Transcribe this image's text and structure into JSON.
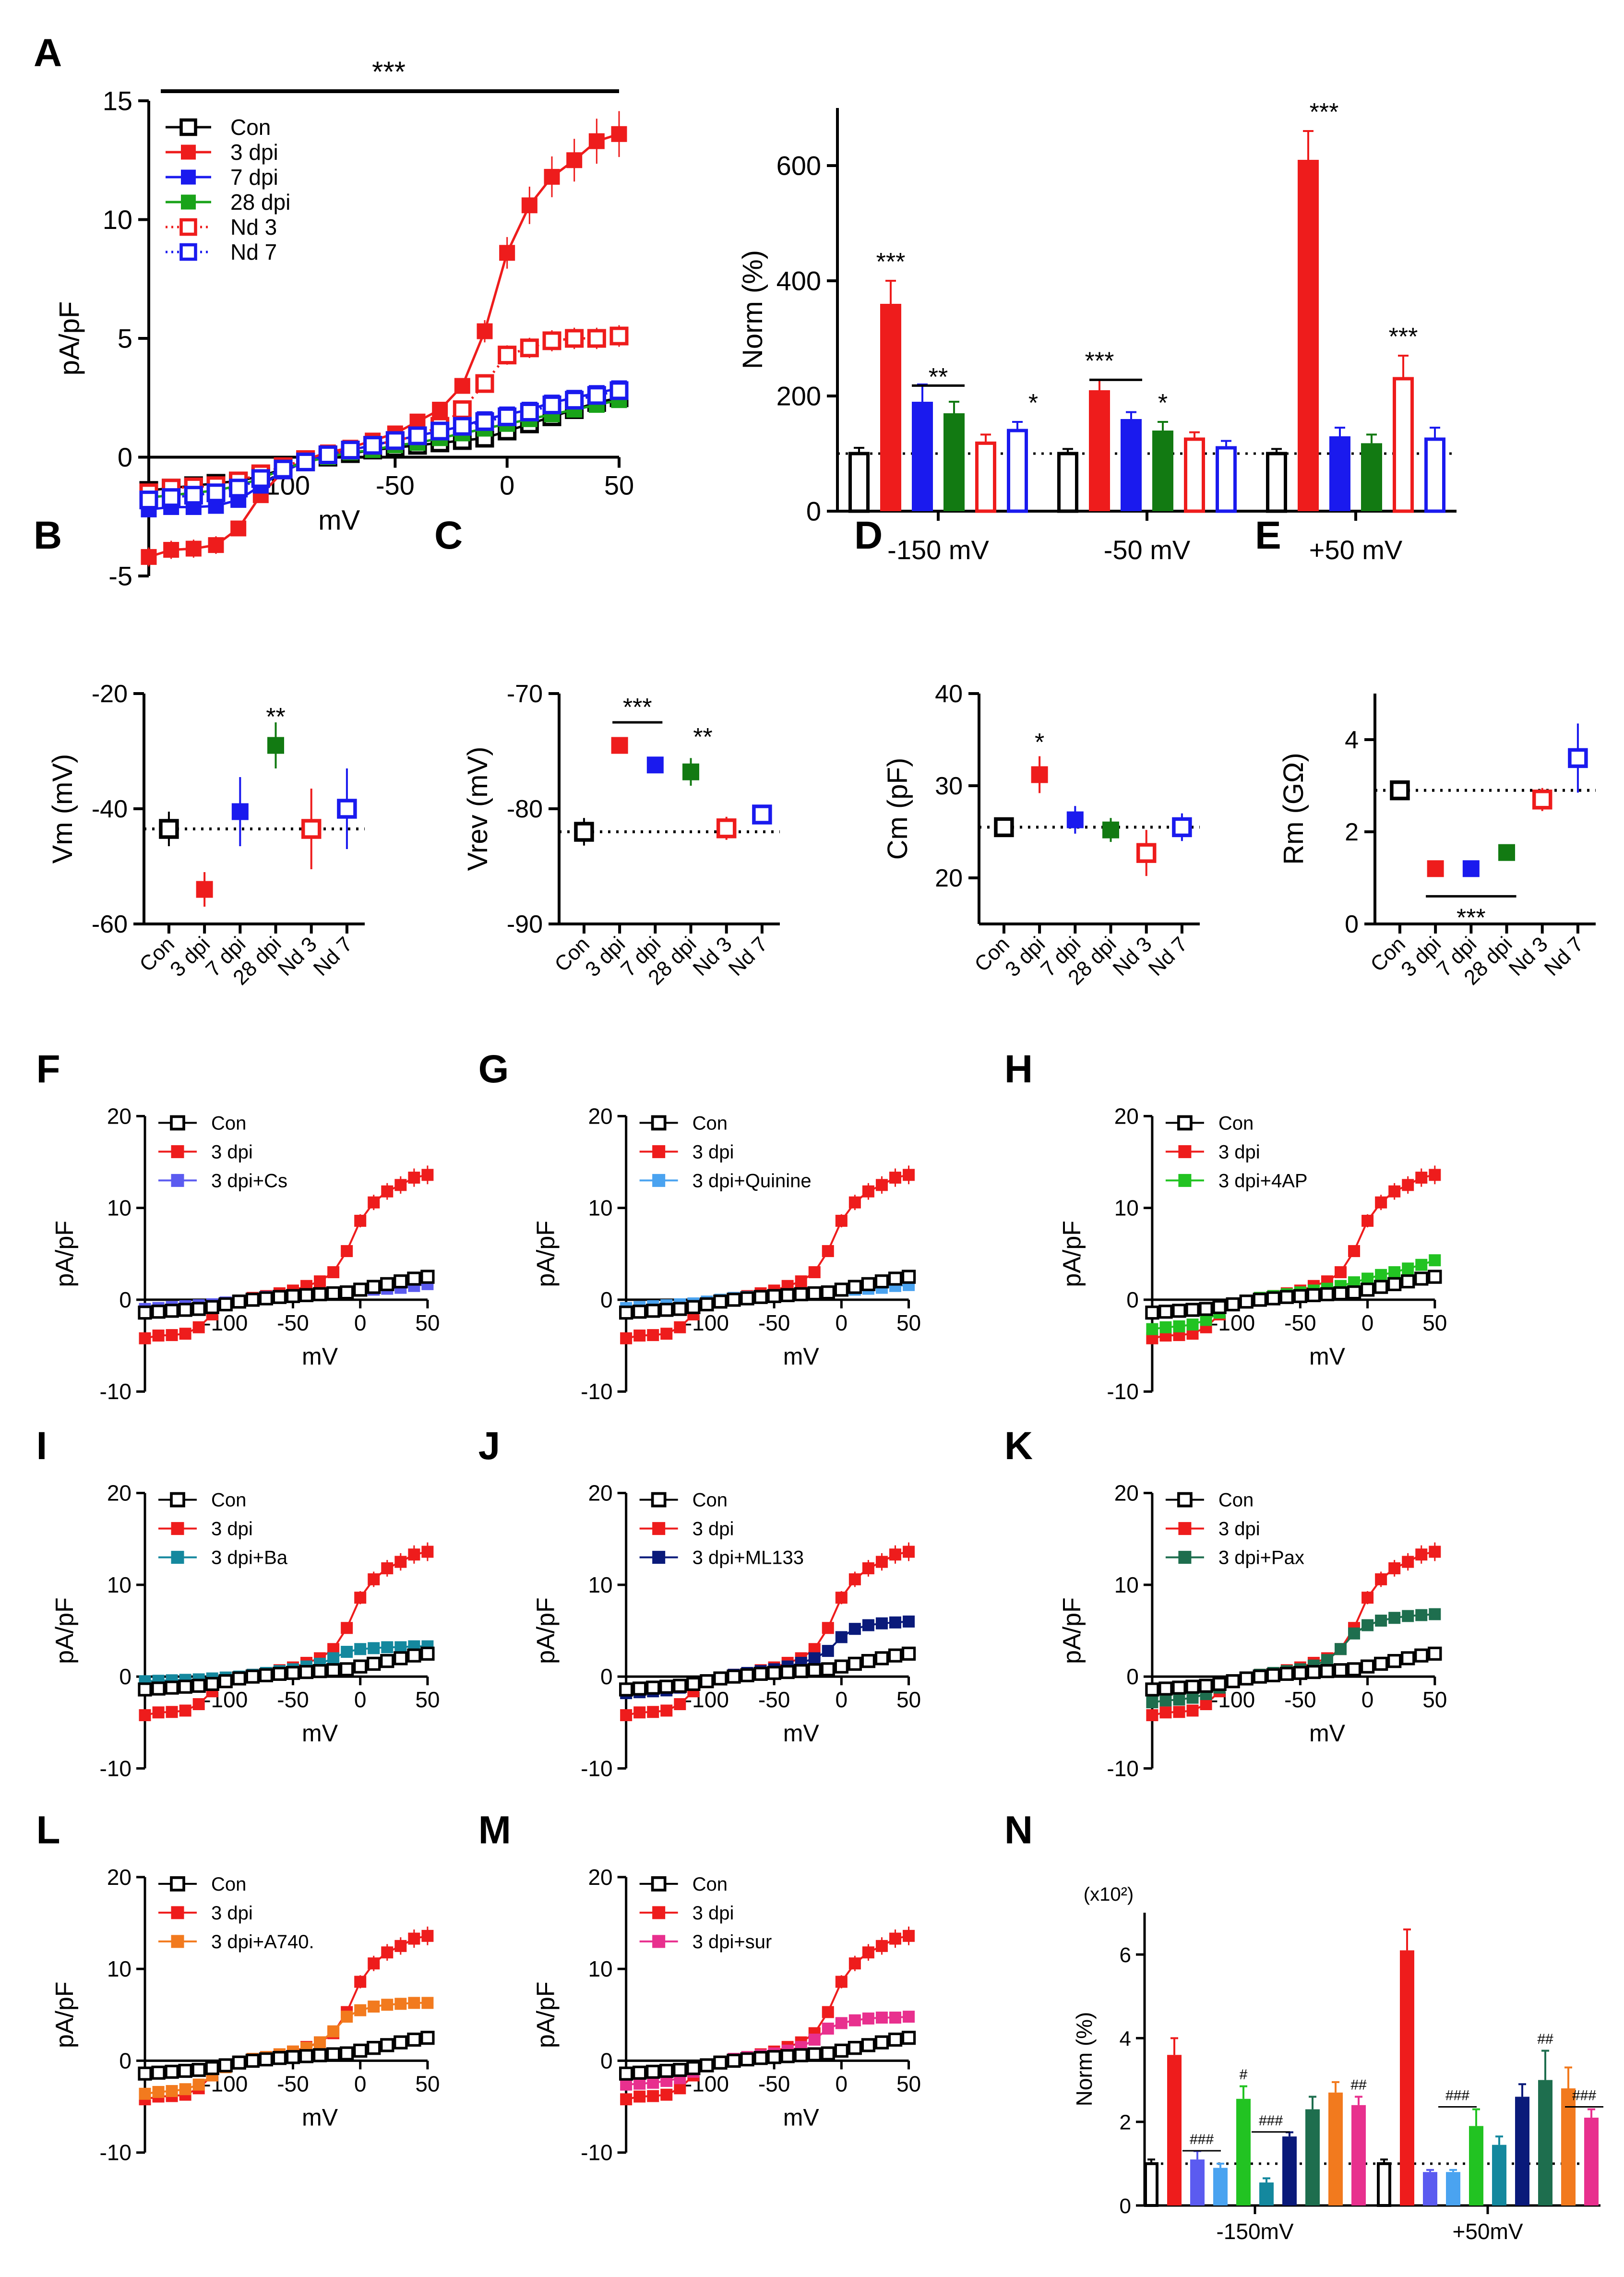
{
  "panel_letters": [
    "A",
    "B",
    "C",
    "D",
    "E",
    "F",
    "G",
    "H",
    "I",
    "J",
    "K",
    "L",
    "M",
    "N"
  ],
  "colors": {
    "con": "#000000",
    "dpi3": "#ee1c1c",
    "dpi7": "#1a1aee",
    "dpi28": "#19a319",
    "nd3": "#ee1c1c",
    "nd7": "#1a1aee",
    "dpi28_dark": "#127a12",
    "cs": "#5b5bf0",
    "quinine": "#4aa3f0",
    "ap4": "#22c322",
    "ba": "#14889e",
    "ml133": "#0a1a7a",
    "pax": "#1e6e4e",
    "a740": "#f27a1e",
    "sur": "#e8308e"
  },
  "chart_data": [
    {
      "id": "A_iv",
      "type": "line",
      "panel": "A",
      "xlabel": "mV",
      "ylabel": "pA/pF",
      "xlim": [
        -160,
        50
      ],
      "ylim": [
        -5,
        15
      ],
      "xticks": [
        -100,
        -50,
        0,
        50
      ],
      "xtick_labels": [
        "-100",
        "-50",
        "0",
        "50"
      ],
      "yticks": [
        -5,
        0,
        5,
        10,
        15
      ],
      "ytick_labels": [
        "-5",
        "0",
        "5",
        "10",
        "15"
      ],
      "annotation": "***",
      "x": [
        -160,
        -150,
        -140,
        -130,
        -120,
        -110,
        -100,
        -90,
        -80,
        -70,
        -60,
        -50,
        -40,
        -30,
        -20,
        -10,
        0,
        10,
        20,
        30,
        40,
        50
      ],
      "series": [
        {
          "name": "Con",
          "key": "con",
          "marker": "open",
          "line": "solid",
          "values": [
            -1.4,
            -1.3,
            -1.2,
            -1.1,
            -1.0,
            -0.8,
            -0.5,
            -0.2,
            0.0,
            0.15,
            0.3,
            0.4,
            0.5,
            0.6,
            0.7,
            0.8,
            1.1,
            1.4,
            1.7,
            2.0,
            2.3,
            2.5
          ]
        },
        {
          "name": "3 dpi",
          "key": "dpi3",
          "marker": "filled",
          "line": "solid",
          "values": [
            -4.2,
            -3.9,
            -3.85,
            -3.7,
            -3.0,
            -1.6,
            -0.6,
            -0.1,
            0.2,
            0.4,
            0.7,
            1.0,
            1.5,
            2.0,
            3.0,
            5.3,
            8.6,
            10.6,
            11.8,
            12.5,
            13.3,
            13.6
          ]
        },
        {
          "name": "7 dpi",
          "key": "dpi7",
          "marker": "filled",
          "line": "solid",
          "values": [
            -2.2,
            -2.1,
            -2.1,
            -2.05,
            -1.8,
            -1.2,
            -0.6,
            -0.2,
            0.1,
            0.3,
            0.5,
            0.7,
            0.9,
            1.1,
            1.3,
            1.6,
            1.8,
            2.0,
            2.3,
            2.5,
            2.7,
            2.9
          ]
        },
        {
          "name": "28 dpi",
          "key": "dpi28",
          "marker": "filled",
          "line": "solid",
          "values": [
            -1.7,
            -1.6,
            -1.5,
            -1.4,
            -1.2,
            -0.9,
            -0.5,
            -0.2,
            0.0,
            0.2,
            0.3,
            0.5,
            0.6,
            0.8,
            1.0,
            1.2,
            1.4,
            1.6,
            1.8,
            2.0,
            2.2,
            2.4
          ]
        },
        {
          "name": "Nd 3",
          "key": "nd3",
          "marker": "open",
          "line": "dotted",
          "values": [
            -1.5,
            -1.3,
            -1.25,
            -1.2,
            -1.0,
            -0.7,
            -0.4,
            -0.1,
            0.1,
            0.3,
            0.5,
            0.7,
            0.9,
            1.3,
            2.0,
            3.1,
            4.3,
            4.6,
            4.9,
            5.0,
            5.0,
            5.1
          ]
        },
        {
          "name": "Nd 7",
          "key": "nd7",
          "marker": "open",
          "line": "dotted",
          "values": [
            -1.8,
            -1.7,
            -1.6,
            -1.5,
            -1.3,
            -0.9,
            -0.5,
            -0.2,
            0.1,
            0.3,
            0.5,
            0.7,
            0.9,
            1.1,
            1.3,
            1.5,
            1.7,
            1.9,
            2.2,
            2.4,
            2.6,
            2.8
          ]
        }
      ]
    },
    {
      "id": "A_bar",
      "type": "bar",
      "panel": "A",
      "ylabel": "Norm  (%)",
      "ylim": [
        0,
        700
      ],
      "yticks": [
        0,
        200,
        400,
        600
      ],
      "ytick_labels": [
        "0",
        "200",
        "400",
        "600"
      ],
      "categories": [
        "-150 mV",
        "-50 mV",
        "+50 mV"
      ],
      "reference_line": 100,
      "series": [
        {
          "name": "Con",
          "key": "con",
          "style": "open",
          "values": [
            100,
            100,
            100
          ],
          "errors": [
            10,
            8,
            8
          ]
        },
        {
          "name": "3 dpi",
          "key": "dpi3",
          "style": "filled",
          "values": [
            360,
            210,
            610
          ],
          "errors": [
            40,
            18,
            50
          ]
        },
        {
          "name": "7 dpi",
          "key": "dpi7",
          "style": "filled",
          "values": [
            190,
            160,
            130
          ],
          "errors": [
            30,
            12,
            15
          ]
        },
        {
          "name": "28 dpi",
          "key": "dpi28_dark",
          "style": "filled",
          "values": [
            170,
            140,
            118
          ],
          "errors": [
            20,
            15,
            15
          ]
        },
        {
          "name": "Nd 3",
          "key": "nd3",
          "style": "open",
          "values": [
            118,
            125,
            230
          ],
          "errors": [
            15,
            12,
            40
          ]
        },
        {
          "name": "Nd 7",
          "key": "nd7",
          "style": "open",
          "values": [
            140,
            110,
            125
          ],
          "errors": [
            15,
            12,
            20
          ]
        }
      ],
      "annotations": [
        "***",
        "**",
        "*",
        "***",
        "*",
        "***",
        "***"
      ]
    },
    {
      "id": "B",
      "type": "scatter",
      "panel": "B",
      "ylabel": "Vm (mV)",
      "ylim": [
        -60,
        -20
      ],
      "yticks": [
        -60,
        -40,
        -20
      ],
      "ytick_labels": [
        "-60",
        "-40",
        "-20"
      ],
      "categories": [
        "Con",
        "3 dpi",
        "7 dpi",
        "28 dpi",
        "Nd 3",
        "Nd 7"
      ],
      "values": [
        -43.5,
        -54,
        -40.5,
        -29,
        -43.5,
        -40
      ],
      "errors": [
        3,
        3,
        6,
        4,
        7,
        7
      ],
      "reference_line": -43.5,
      "annotation": "**"
    },
    {
      "id": "C",
      "type": "scatter",
      "panel": "C",
      "ylabel": "Vrev (mV)",
      "ylim": [
        -90,
        -70
      ],
      "yticks": [
        -90,
        -80,
        -70
      ],
      "ytick_labels": [
        "-90",
        "-80",
        "-70"
      ],
      "categories": [
        "Con",
        "3 dpi",
        "7 dpi",
        "28 dpi",
        "Nd 3",
        "Nd 7"
      ],
      "values": [
        -82,
        -74.5,
        -76.2,
        -76.8,
        -81.7,
        -80.5
      ],
      "errors": [
        1.2,
        0.5,
        0.6,
        1.2,
        1,
        0.8
      ],
      "reference_line": -82,
      "annotations": [
        "***",
        "**"
      ]
    },
    {
      "id": "D",
      "type": "scatter",
      "panel": "D",
      "ylabel": "Cm  (pF)",
      "ylim": [
        15,
        40
      ],
      "yticks": [
        20,
        30,
        40
      ],
      "ytick_labels": [
        "20",
        "30",
        "40"
      ],
      "categories": [
        "Con",
        "3 dpi",
        "7 dpi",
        "28 dpi",
        "Nd 3",
        "Nd 7"
      ],
      "values": [
        25.5,
        31.2,
        26.3,
        25.2,
        22.7,
        25.5
      ],
      "errors": [
        1,
        2,
        1.5,
        1.3,
        2.5,
        1.5
      ],
      "reference_line": 25.5,
      "annotation": "*"
    },
    {
      "id": "E",
      "type": "scatter",
      "panel": "E",
      "ylabel": "Rm  (GΩ)",
      "ylim": [
        0,
        5
      ],
      "yticks": [
        0,
        2,
        4
      ],
      "ytick_labels": [
        "0",
        "2",
        "4"
      ],
      "categories": [
        "Con",
        "3 dpi",
        "7 dpi",
        "28 dpi",
        "Nd 3",
        "Nd 7"
      ],
      "values": [
        2.9,
        1.2,
        1.2,
        1.55,
        2.7,
        3.6
      ],
      "errors": [
        0.15,
        0.05,
        0.05,
        0.1,
        0.25,
        0.75
      ],
      "reference_line": 2.9,
      "annotation": "***"
    },
    {
      "id": "F",
      "type": "line",
      "panel": "F",
      "xlabel": "mV",
      "ylabel": "pA/pF",
      "treat_name": "3 dpi+Cs",
      "treat_key": "cs",
      "treat_values": [
        -1.0,
        -0.9,
        -0.8,
        -0.7,
        -0.6,
        -0.5,
        -0.3,
        -0.1,
        0.1,
        0.3,
        0.4,
        0.5,
        0.6,
        0.7,
        0.8,
        0.9,
        1.0,
        1.1,
        1.2,
        1.3,
        1.5,
        1.7
      ]
    },
    {
      "id": "G",
      "type": "line",
      "panel": "G",
      "xlabel": "mV",
      "ylabel": "pA/pF",
      "treat_name": "3 dpi+Quinine",
      "treat_key": "quinine",
      "treat_values": [
        -0.9,
        -0.8,
        -0.7,
        -0.6,
        -0.5,
        -0.4,
        -0.2,
        0.0,
        0.2,
        0.3,
        0.4,
        0.5,
        0.6,
        0.7,
        0.8,
        0.9,
        1.0,
        1.1,
        1.2,
        1.3,
        1.5,
        1.6
      ]
    },
    {
      "id": "H",
      "type": "line",
      "panel": "H",
      "xlabel": "mV",
      "ylabel": "pA/pF",
      "treat_name": "3 dpi+4AP",
      "treat_key": "ap4",
      "treat_values": [
        -3.2,
        -3.0,
        -2.9,
        -2.7,
        -2.2,
        -1.4,
        -0.6,
        -0.1,
        0.2,
        0.4,
        0.6,
        0.8,
        1.0,
        1.2,
        1.5,
        1.9,
        2.3,
        2.7,
        3.0,
        3.4,
        3.8,
        4.3
      ]
    },
    {
      "id": "I",
      "type": "line",
      "panel": "I",
      "xlabel": "mV",
      "ylabel": "pA/pF",
      "treat_name": "3 dpi+Ba",
      "treat_key": "ba",
      "treat_values": [
        -0.5,
        -0.45,
        -0.4,
        -0.35,
        -0.3,
        -0.2,
        -0.1,
        0.0,
        0.2,
        0.4,
        0.6,
        0.8,
        1.1,
        1.4,
        2.0,
        2.7,
        3.0,
        3.1,
        3.2,
        3.2,
        3.3,
        3.3
      ]
    },
    {
      "id": "J",
      "type": "line",
      "panel": "J",
      "xlabel": "mV",
      "ylabel": "pA/pF",
      "treat_name": "3 dpi+ML133",
      "treat_key": "ml133",
      "treat_values": [
        -1.8,
        -1.7,
        -1.6,
        -1.5,
        -1.2,
        -0.8,
        -0.4,
        -0.1,
        0.2,
        0.4,
        0.6,
        0.8,
        1.1,
        1.5,
        2.0,
        2.8,
        4.3,
        5.2,
        5.6,
        5.8,
        5.9,
        6.0
      ]
    },
    {
      "id": "K",
      "type": "line",
      "panel": "K",
      "xlabel": "mV",
      "ylabel": "pA/pF",
      "treat_name": "3 dpi+Pax",
      "treat_key": "pax",
      "treat_values": [
        -2.8,
        -2.6,
        -2.5,
        -2.3,
        -1.9,
        -1.2,
        -0.5,
        -0.1,
        0.2,
        0.4,
        0.6,
        0.8,
        1.2,
        1.8,
        3.0,
        4.7,
        5.6,
        6.1,
        6.4,
        6.6,
        6.7,
        6.8
      ]
    },
    {
      "id": "L",
      "type": "line",
      "panel": "L",
      "xlabel": "mV",
      "ylabel": "pA/pF",
      "treat_name": "3 dpi+A740.",
      "treat_key": "a740",
      "treat_values": [
        -3.6,
        -3.4,
        -3.3,
        -3.1,
        -2.6,
        -1.6,
        -0.7,
        -0.1,
        0.2,
        0.4,
        0.7,
        1.0,
        1.4,
        2.0,
        3.2,
        4.8,
        5.5,
        5.9,
        6.1,
        6.2,
        6.3,
        6.3
      ]
    },
    {
      "id": "M",
      "type": "line",
      "panel": "M",
      "xlabel": "mV",
      "ylabel": "pA/pF",
      "treat_name": "3 dpi+sur",
      "treat_key": "sur",
      "treat_values": [
        -2.6,
        -2.5,
        -2.4,
        -2.2,
        -1.9,
        -1.2,
        -0.5,
        -0.1,
        0.2,
        0.4,
        0.6,
        0.8,
        1.1,
        1.5,
        2.3,
        3.5,
        4.1,
        4.4,
        4.6,
        4.7,
        4.7,
        4.8
      ]
    },
    {
      "id": "N",
      "type": "bar",
      "panel": "N",
      "ylabel": "Norm  (%)",
      "scale_label": "(x10²)",
      "ylim": [
        0,
        7
      ],
      "yticks": [
        0,
        2,
        4,
        6
      ],
      "ytick_labels": [
        "0",
        "2",
        "4",
        "6"
      ],
      "reference_line": 1,
      "categories": [
        "-150mV",
        "+50mV"
      ],
      "series": [
        {
          "name": "Con",
          "key": "con",
          "style": "open",
          "values": [
            1.0,
            1.0
          ],
          "errors": [
            0.1,
            0.1
          ]
        },
        {
          "name": "3 dpi",
          "key": "dpi3",
          "style": "filled",
          "values": [
            3.6,
            6.1
          ],
          "errors": [
            0.4,
            0.5
          ]
        },
        {
          "name": "3 dpi+Cs",
          "key": "cs",
          "style": "filled",
          "values": [
            1.1,
            0.8
          ],
          "errors": [
            0.2,
            0.05
          ]
        },
        {
          "name": "3 dpi+Quinine",
          "key": "quinine",
          "style": "filled",
          "values": [
            0.9,
            0.8
          ],
          "errors": [
            0.1,
            0.05
          ]
        },
        {
          "name": "3 dpi+4AP",
          "key": "ap4",
          "style": "filled",
          "values": [
            2.55,
            1.9
          ],
          "errors": [
            0.3,
            0.4
          ]
        },
        {
          "name": "3 dpi+Ba",
          "key": "ba",
          "style": "filled",
          "values": [
            0.55,
            1.45
          ],
          "errors": [
            0.1,
            0.2
          ]
        },
        {
          "name": "3 dpi+ML133",
          "key": "ml133",
          "style": "filled",
          "values": [
            1.65,
            2.6
          ],
          "errors": [
            0.1,
            0.3
          ]
        },
        {
          "name": "3 dpi+Pax",
          "key": "pax",
          "style": "filled",
          "values": [
            2.3,
            3.0
          ],
          "errors": [
            0.3,
            0.7
          ]
        },
        {
          "name": "3 dpi+A740.",
          "key": "a740",
          "style": "filled",
          "values": [
            2.7,
            2.8
          ],
          "errors": [
            0.25,
            0.5
          ]
        },
        {
          "name": "3 dpi+sur",
          "key": "sur",
          "style": "filled",
          "values": [
            2.4,
            2.1
          ],
          "errors": [
            0.2,
            0.2
          ]
        }
      ],
      "annotations": [
        "###",
        "#",
        "###",
        "##",
        "###",
        "##",
        "###"
      ]
    }
  ],
  "iv_common": {
    "x": [
      -160,
      -150,
      -140,
      -130,
      -120,
      -110,
      -100,
      -90,
      -80,
      -70,
      -60,
      -50,
      -40,
      -30,
      -20,
      -10,
      0,
      10,
      20,
      30,
      40,
      50
    ],
    "xlim": [
      -160,
      50
    ],
    "ylim": [
      -10,
      20
    ],
    "xticks": [
      -100,
      -50,
      0,
      50
    ],
    "xtick_labels": [
      "-100",
      "-50",
      "0",
      "50"
    ],
    "yticks": [
      -10,
      0,
      10,
      20
    ],
    "ytick_labels": [
      "-10",
      "0",
      "10",
      "20"
    ],
    "con_name": "Con",
    "dpi3_name": "3 dpi",
    "con_values": [
      -1.4,
      -1.3,
      -1.2,
      -1.1,
      -1.0,
      -0.8,
      -0.5,
      -0.2,
      0.0,
      0.15,
      0.3,
      0.4,
      0.5,
      0.6,
      0.7,
      0.8,
      1.1,
      1.4,
      1.7,
      2.0,
      2.3,
      2.5
    ],
    "dpi3_values": [
      -4.2,
      -3.9,
      -3.85,
      -3.7,
      -3.0,
      -1.6,
      -0.6,
      -0.1,
      0.2,
      0.4,
      0.7,
      1.0,
      1.5,
      2.0,
      3.0,
      5.3,
      8.6,
      10.6,
      11.8,
      12.5,
      13.3,
      13.6
    ]
  }
}
